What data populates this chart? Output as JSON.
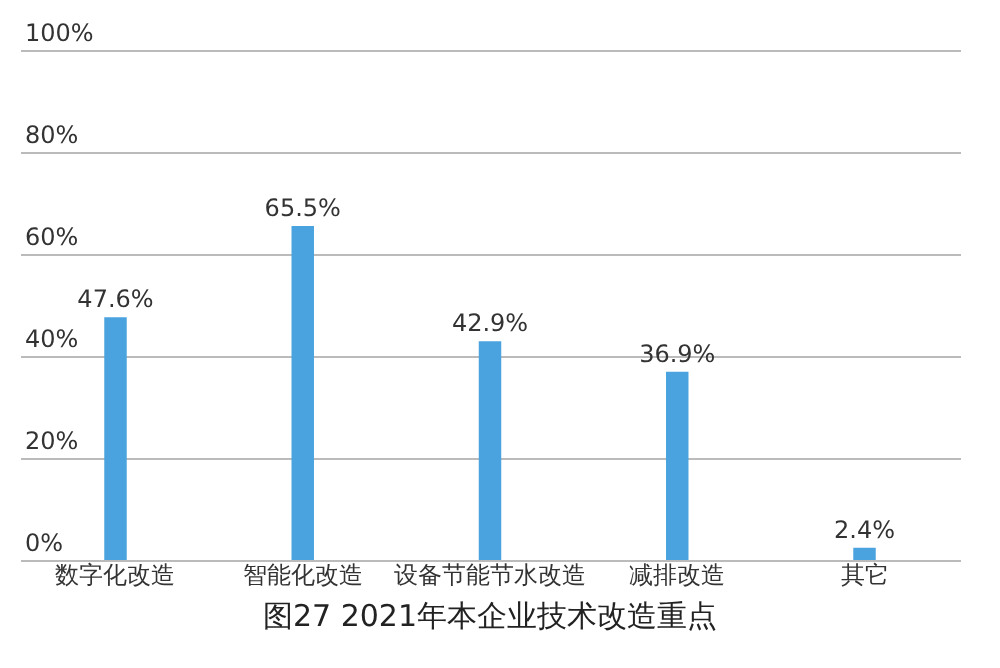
{
  "chart_data": {
    "type": "bar",
    "title": "图27 2021年本企业技术改造重点",
    "categories": [
      "数字化改造",
      "智能化改造",
      "设备节能节水改造",
      "减排改造",
      "其它"
    ],
    "values": [
      47.6,
      65.5,
      42.9,
      36.9,
      2.4
    ],
    "color": "#4aa3df",
    "ylim": [
      0,
      100
    ],
    "yticks": [
      {
        "value": 0,
        "label": "0%"
      },
      {
        "value": 20,
        "label": "20%"
      },
      {
        "value": 40,
        "label": "40%"
      },
      {
        "value": 60,
        "label": "60%"
      },
      {
        "value": 80,
        "label": "80%"
      },
      {
        "value": 100,
        "label": "100%"
      }
    ],
    "grid": "y",
    "value_labels": [
      "47.6%",
      "65.5%",
      "42.9%",
      "36.9%",
      "2.4%"
    ]
  }
}
